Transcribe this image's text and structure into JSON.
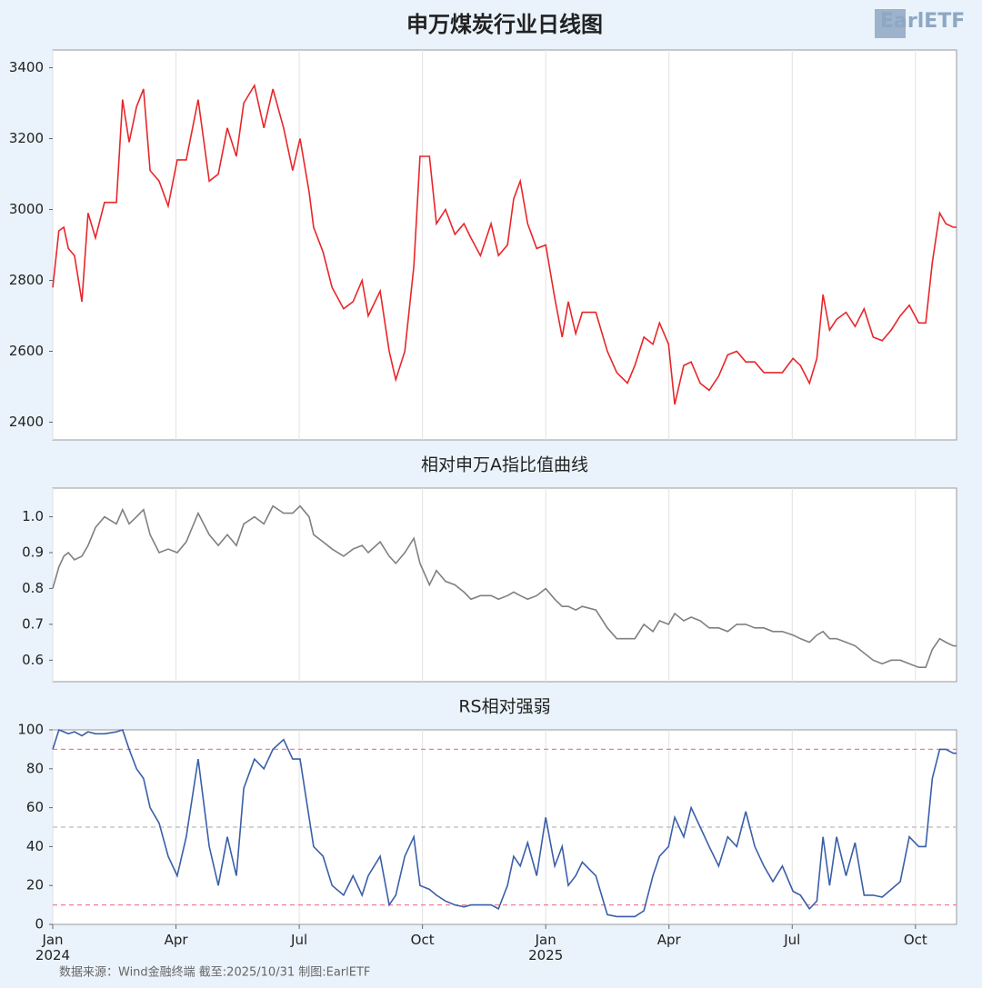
{
  "logo": "EarlETF",
  "footer": "数据来源：Wind金融终端 截至:2025/10/31 制图:EarlETF",
  "chart_data": [
    {
      "type": "line",
      "title": "申万煤炭行业日线图",
      "color": "#e8262a",
      "x": [
        0,
        0.15,
        0.27,
        0.38,
        0.53,
        0.71,
        0.86,
        1.04,
        1.26,
        1.55,
        1.7,
        1.86,
        2.04,
        2.21,
        2.37,
        2.59,
        2.81,
        3.03,
        3.25,
        3.54,
        3.81,
        4.03,
        4.25,
        4.47,
        4.65,
        4.91,
        5.14,
        5.36,
        5.62,
        5.84,
        6.02,
        6.24,
        6.35,
        6.58,
        6.8,
        7.08,
        7.31,
        7.53,
        7.68,
        7.97,
        8.19,
        8.35,
        8.57,
        8.79,
        8.94,
        9.17,
        9.34,
        9.56,
        9.79,
        10.01,
        10.18,
        10.41,
        10.67,
        10.85,
        11.07,
        11.22,
        11.38,
        11.56,
        11.78,
        12.0,
        12.22,
        12.4,
        12.55,
        12.73,
        12.89,
        13.22,
        13.5,
        13.73,
        13.99,
        14.17,
        14.39,
        14.61,
        14.77,
        14.99,
        15.14,
        15.36,
        15.54,
        15.76,
        15.98,
        16.21,
        16.43,
        16.65,
        16.87,
        17.09,
        17.31,
        17.53,
        17.76,
        18.02,
        18.2,
        18.42,
        18.6,
        18.75,
        18.91,
        19.08,
        19.31,
        19.53,
        19.75,
        19.97,
        20.19,
        20.41,
        20.63,
        20.85,
        21.08,
        21.25,
        21.41,
        21.59,
        21.74,
        21.92,
        22.0
      ],
      "values": [
        2780,
        2940,
        2950,
        2890,
        2870,
        2740,
        2990,
        2920,
        3020,
        3020,
        3310,
        3190,
        3290,
        3340,
        3110,
        3080,
        3010,
        3140,
        3140,
        3310,
        3080,
        3100,
        3230,
        3150,
        3300,
        3350,
        3230,
        3340,
        3230,
        3110,
        3200,
        3050,
        2950,
        2880,
        2780,
        2720,
        2740,
        2800,
        2700,
        2770,
        2600,
        2520,
        2600,
        2840,
        3150,
        3150,
        2960,
        3000,
        2930,
        2960,
        2920,
        2870,
        2960,
        2870,
        2900,
        3030,
        3080,
        2960,
        2890,
        2900,
        2750,
        2640,
        2740,
        2650,
        2710,
        2710,
        2600,
        2540,
        2510,
        2560,
        2640,
        2620,
        2680,
        2620,
        2450,
        2560,
        2570,
        2510,
        2490,
        2530,
        2590,
        2600,
        2570,
        2570,
        2540,
        2540,
        2540,
        2580,
        2560,
        2510,
        2580,
        2760,
        2660,
        2690,
        2710,
        2670,
        2720,
        2640,
        2630,
        2660,
        2700,
        2730,
        2680,
        2680,
        2850,
        2990,
        2960,
        2950,
        2950
      ],
      "xlim": [
        0,
        22
      ],
      "ylim": [
        2350,
        3450
      ],
      "yticks": [
        2400,
        2600,
        2800,
        3000,
        3200,
        3400
      ]
    },
    {
      "type": "line",
      "title": "相对申万A指比值曲线",
      "color": "#808080",
      "x": [
        0,
        0.15,
        0.27,
        0.38,
        0.53,
        0.71,
        0.86,
        1.04,
        1.26,
        1.55,
        1.7,
        1.86,
        2.04,
        2.21,
        2.37,
        2.59,
        2.81,
        3.03,
        3.25,
        3.54,
        3.81,
        4.03,
        4.25,
        4.47,
        4.65,
        4.91,
        5.14,
        5.36,
        5.62,
        5.84,
        6.02,
        6.24,
        6.35,
        6.58,
        6.8,
        7.08,
        7.31,
        7.53,
        7.68,
        7.97,
        8.19,
        8.35,
        8.57,
        8.79,
        8.94,
        9.17,
        9.34,
        9.56,
        9.79,
        10.01,
        10.18,
        10.41,
        10.67,
        10.85,
        11.07,
        11.22,
        11.38,
        11.56,
        11.78,
        12.0,
        12.22,
        12.4,
        12.55,
        12.73,
        12.89,
        13.22,
        13.5,
        13.73,
        13.99,
        14.17,
        14.39,
        14.61,
        14.77,
        14.99,
        15.14,
        15.36,
        15.54,
        15.76,
        15.98,
        16.21,
        16.43,
        16.65,
        16.87,
        17.09,
        17.31,
        17.53,
        17.76,
        18.02,
        18.2,
        18.42,
        18.6,
        18.75,
        18.91,
        19.08,
        19.31,
        19.53,
        19.75,
        19.97,
        20.19,
        20.41,
        20.63,
        20.85,
        21.08,
        21.25,
        21.41,
        21.59,
        21.74,
        21.92,
        22.0
      ],
      "values": [
        0.8,
        0.86,
        0.89,
        0.9,
        0.88,
        0.89,
        0.92,
        0.97,
        1.0,
        0.98,
        1.02,
        0.98,
        1.0,
        1.02,
        0.95,
        0.9,
        0.91,
        0.9,
        0.93,
        1.01,
        0.95,
        0.92,
        0.95,
        0.92,
        0.98,
        1.0,
        0.98,
        1.03,
        1.01,
        1.01,
        1.03,
        1.0,
        0.95,
        0.93,
        0.91,
        0.89,
        0.91,
        0.92,
        0.9,
        0.93,
        0.89,
        0.87,
        0.9,
        0.94,
        0.87,
        0.81,
        0.85,
        0.82,
        0.81,
        0.79,
        0.77,
        0.78,
        0.78,
        0.77,
        0.78,
        0.79,
        0.78,
        0.77,
        0.78,
        0.8,
        0.77,
        0.75,
        0.75,
        0.74,
        0.75,
        0.74,
        0.69,
        0.66,
        0.66,
        0.66,
        0.7,
        0.68,
        0.71,
        0.7,
        0.73,
        0.71,
        0.72,
        0.71,
        0.69,
        0.69,
        0.68,
        0.7,
        0.7,
        0.69,
        0.69,
        0.68,
        0.68,
        0.67,
        0.66,
        0.65,
        0.67,
        0.68,
        0.66,
        0.66,
        0.65,
        0.64,
        0.62,
        0.6,
        0.59,
        0.6,
        0.6,
        0.59,
        0.58,
        0.58,
        0.63,
        0.66,
        0.65,
        0.64,
        0.64
      ],
      "xlim": [
        0,
        22
      ],
      "ylim": [
        0.54,
        1.08
      ],
      "yticks": [
        0.6,
        0.7,
        0.8,
        0.9,
        {
          "value": 1,
          "label": "1.0"
        }
      ]
    },
    {
      "type": "line",
      "title": "RS相对强弱",
      "color": "#3a5fa8",
      "x": [
        0,
        0.15,
        0.27,
        0.38,
        0.53,
        0.71,
        0.86,
        1.04,
        1.26,
        1.55,
        1.7,
        1.86,
        2.04,
        2.21,
        2.37,
        2.59,
        2.81,
        3.03,
        3.25,
        3.54,
        3.81,
        4.03,
        4.25,
        4.47,
        4.65,
        4.91,
        5.14,
        5.36,
        5.62,
        5.84,
        6.02,
        6.24,
        6.35,
        6.58,
        6.8,
        7.08,
        7.31,
        7.53,
        7.68,
        7.97,
        8.19,
        8.35,
        8.57,
        8.79,
        8.94,
        9.17,
        9.34,
        9.56,
        9.79,
        10.01,
        10.18,
        10.41,
        10.67,
        10.85,
        11.07,
        11.22,
        11.38,
        11.56,
        11.78,
        12.0,
        12.22,
        12.4,
        12.55,
        12.73,
        12.89,
        13.22,
        13.5,
        13.73,
        13.99,
        14.17,
        14.39,
        14.61,
        14.77,
        14.99,
        15.14,
        15.36,
        15.54,
        15.76,
        15.98,
        16.21,
        16.43,
        16.65,
        16.87,
        17.09,
        17.31,
        17.53,
        17.76,
        18.02,
        18.2,
        18.42,
        18.6,
        18.75,
        18.91,
        19.08,
        19.31,
        19.53,
        19.75,
        19.97,
        20.19,
        20.41,
        20.63,
        20.85,
        21.08,
        21.25,
        21.41,
        21.59,
        21.74,
        21.92,
        22.0
      ],
      "values": [
        90,
        100,
        99,
        98,
        99,
        97,
        99,
        98,
        98,
        99,
        100,
        90,
        80,
        75,
        60,
        52,
        35,
        25,
        45,
        85,
        40,
        20,
        45,
        25,
        70,
        85,
        80,
        90,
        95,
        85,
        85,
        55,
        40,
        35,
        20,
        15,
        25,
        15,
        25,
        35,
        10,
        15,
        35,
        45,
        20,
        18,
        15,
        12,
        10,
        9,
        10,
        10,
        10,
        8,
        20,
        35,
        30,
        42,
        25,
        55,
        30,
        40,
        20,
        25,
        32,
        25,
        5,
        4,
        4,
        4,
        7,
        25,
        35,
        40,
        55,
        45,
        60,
        50,
        40,
        30,
        45,
        40,
        58,
        40,
        30,
        22,
        30,
        17,
        15,
        8,
        12,
        45,
        20,
        45,
        25,
        42,
        15,
        15,
        14,
        18,
        22,
        45,
        40,
        40,
        75,
        90,
        90,
        88,
        88
      ],
      "xlim": [
        0,
        22
      ],
      "ylim": [
        0,
        100
      ],
      "yticks": [
        0,
        20,
        40,
        60,
        80,
        100
      ],
      "ref_lines": [
        {
          "value": 90,
          "color": "#f07f95"
        },
        {
          "value": 50,
          "color": "#bbbbbb"
        },
        {
          "value": 10,
          "color": "#f07f95"
        }
      ],
      "xticks": [
        {
          "value": 0,
          "label": "Jan\n2024"
        },
        {
          "value": 3,
          "label": "Apr"
        },
        {
          "value": 6,
          "label": "Jul"
        },
        {
          "value": 9,
          "label": "Oct"
        },
        {
          "value": 12,
          "label": "Jan\n2025"
        },
        {
          "value": 15,
          "label": "Apr"
        },
        {
          "value": 18,
          "label": "Jul"
        },
        {
          "value": 21,
          "label": "Oct"
        }
      ]
    }
  ]
}
